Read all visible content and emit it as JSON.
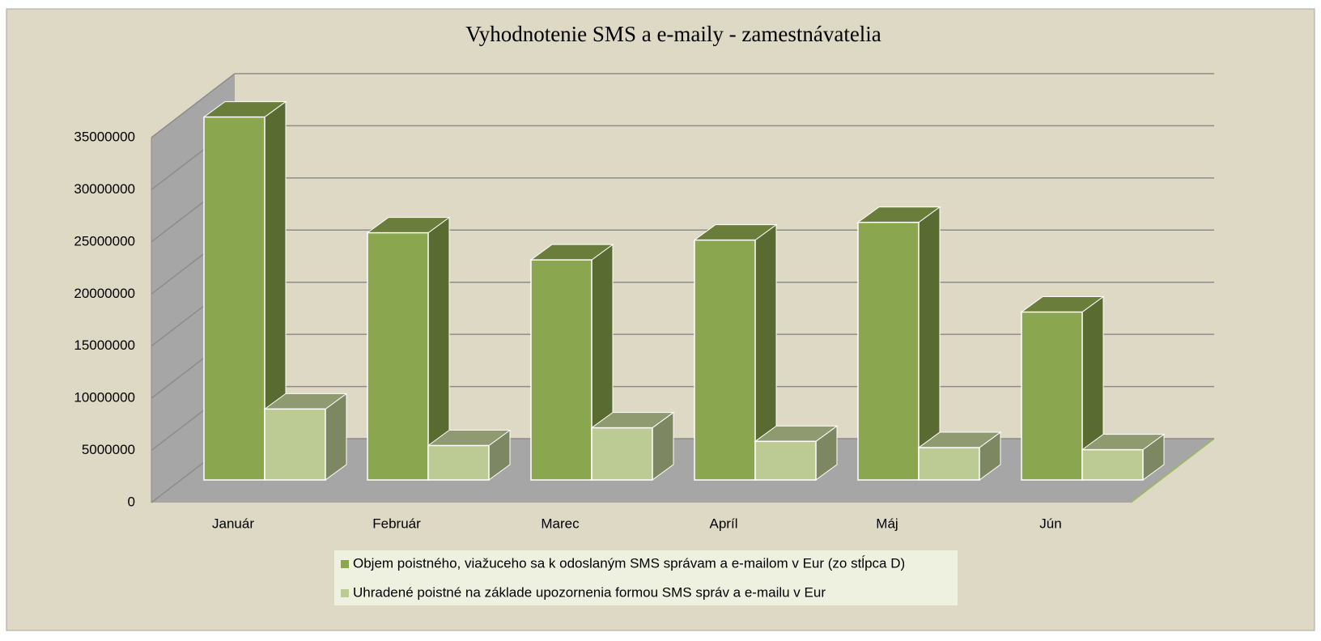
{
  "chart_data": {
    "type": "bar3d",
    "title": "Vyhodnotenie SMS a e-maily - zamestnávatelia",
    "categories": [
      "Január",
      "Február",
      "Marec",
      "Apríl",
      "Máj",
      "Jún"
    ],
    "series": [
      {
        "name": "Objem poistného, viažuceho sa k odoslaným SMS správam a e-mailom v Eur (zo stĺpca D)",
        "color": "#8aa64e",
        "values": [
          34800000,
          23700000,
          21100000,
          23000000,
          24700000,
          16100000
        ]
      },
      {
        "name": "Uhradené poistné na základe upozornenia formou SMS správ a e-mailu v Eur",
        "color": "#bccb94",
        "values": [
          6800000,
          3300000,
          5000000,
          3700000,
          3100000,
          2900000
        ]
      }
    ],
    "ylim": [
      0,
      35000000
    ],
    "yticks": [
      0,
      5000000,
      10000000,
      15000000,
      20000000,
      25000000,
      30000000,
      35000000
    ],
    "grid": true
  }
}
